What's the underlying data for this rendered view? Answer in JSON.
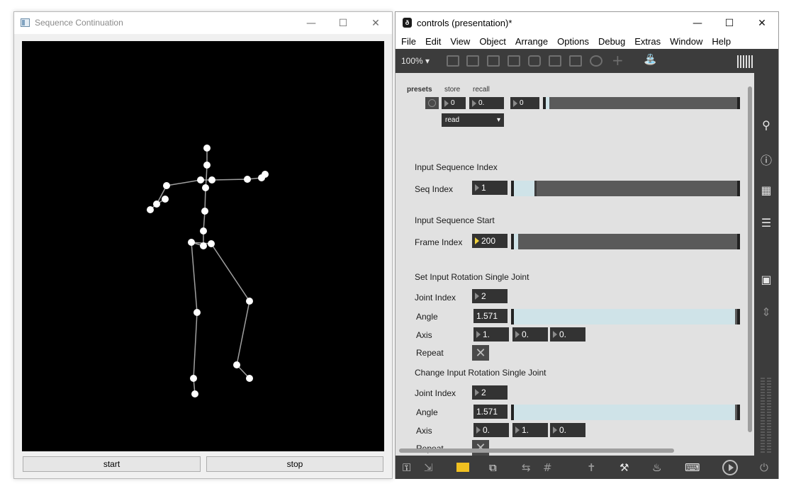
{
  "left_window": {
    "title": "Sequence Continuation",
    "buttons": {
      "start": "start",
      "stop": "stop"
    }
  },
  "right_window": {
    "title": "controls (presentation)*",
    "logo_glyph": "ð",
    "menu": [
      "File",
      "Edit",
      "View",
      "Object",
      "Arrange",
      "Options",
      "Debug",
      "Extras",
      "Window",
      "Help"
    ],
    "zoom": "100%",
    "presets": {
      "title": "presets",
      "store": "store",
      "recall": "recall",
      "store_value": "0",
      "recall_value": "0.",
      "preset_value": "0",
      "slider_level": 0.02,
      "dropdown": "read"
    },
    "seq_section": {
      "heading": "Input Sequence Index",
      "label": "Seq Index",
      "value": "1",
      "slider_level": 0.1
    },
    "start_section": {
      "heading": "Input Sequence Start",
      "label": "Frame Index",
      "value": "200",
      "slider_level": 0.02
    },
    "set_rotation": {
      "heading": "Set Input Rotation Single Joint",
      "joint_label": "Joint Index",
      "joint_value": "2",
      "angle_label": "Angle",
      "angle_value": "1.571",
      "angle_level": 0.99,
      "axis_label": "Axis",
      "axis_values": [
        "1.",
        "0.",
        "0."
      ],
      "repeat_label": "Repeat"
    },
    "change_rotation": {
      "heading": "Change Input Rotation Single Joint",
      "joint_label": "Joint Index",
      "joint_value": "2",
      "angle_label": "Angle",
      "angle_value": "1.571",
      "angle_level": 0.99,
      "axis_label": "Axis",
      "axis_values": [
        "0.",
        "1.",
        "0."
      ],
      "repeat_label": "Repeat"
    }
  },
  "colors": {
    "toolbar_bg": "#3c3c3c",
    "patch_bg": "#e1e1e1",
    "numbox_bg": "#333333",
    "slider_fill": "#cfe3e8",
    "accent_yellow": "#f0d23c"
  },
  "icons": [
    "search-icon",
    "info-icon",
    "book-icon",
    "list-icon",
    "camera-icon",
    "mixer-icon",
    "lock-icon",
    "presentation-icon",
    "wrench-icon",
    "keyboard-icon",
    "play-icon",
    "power-icon"
  ]
}
